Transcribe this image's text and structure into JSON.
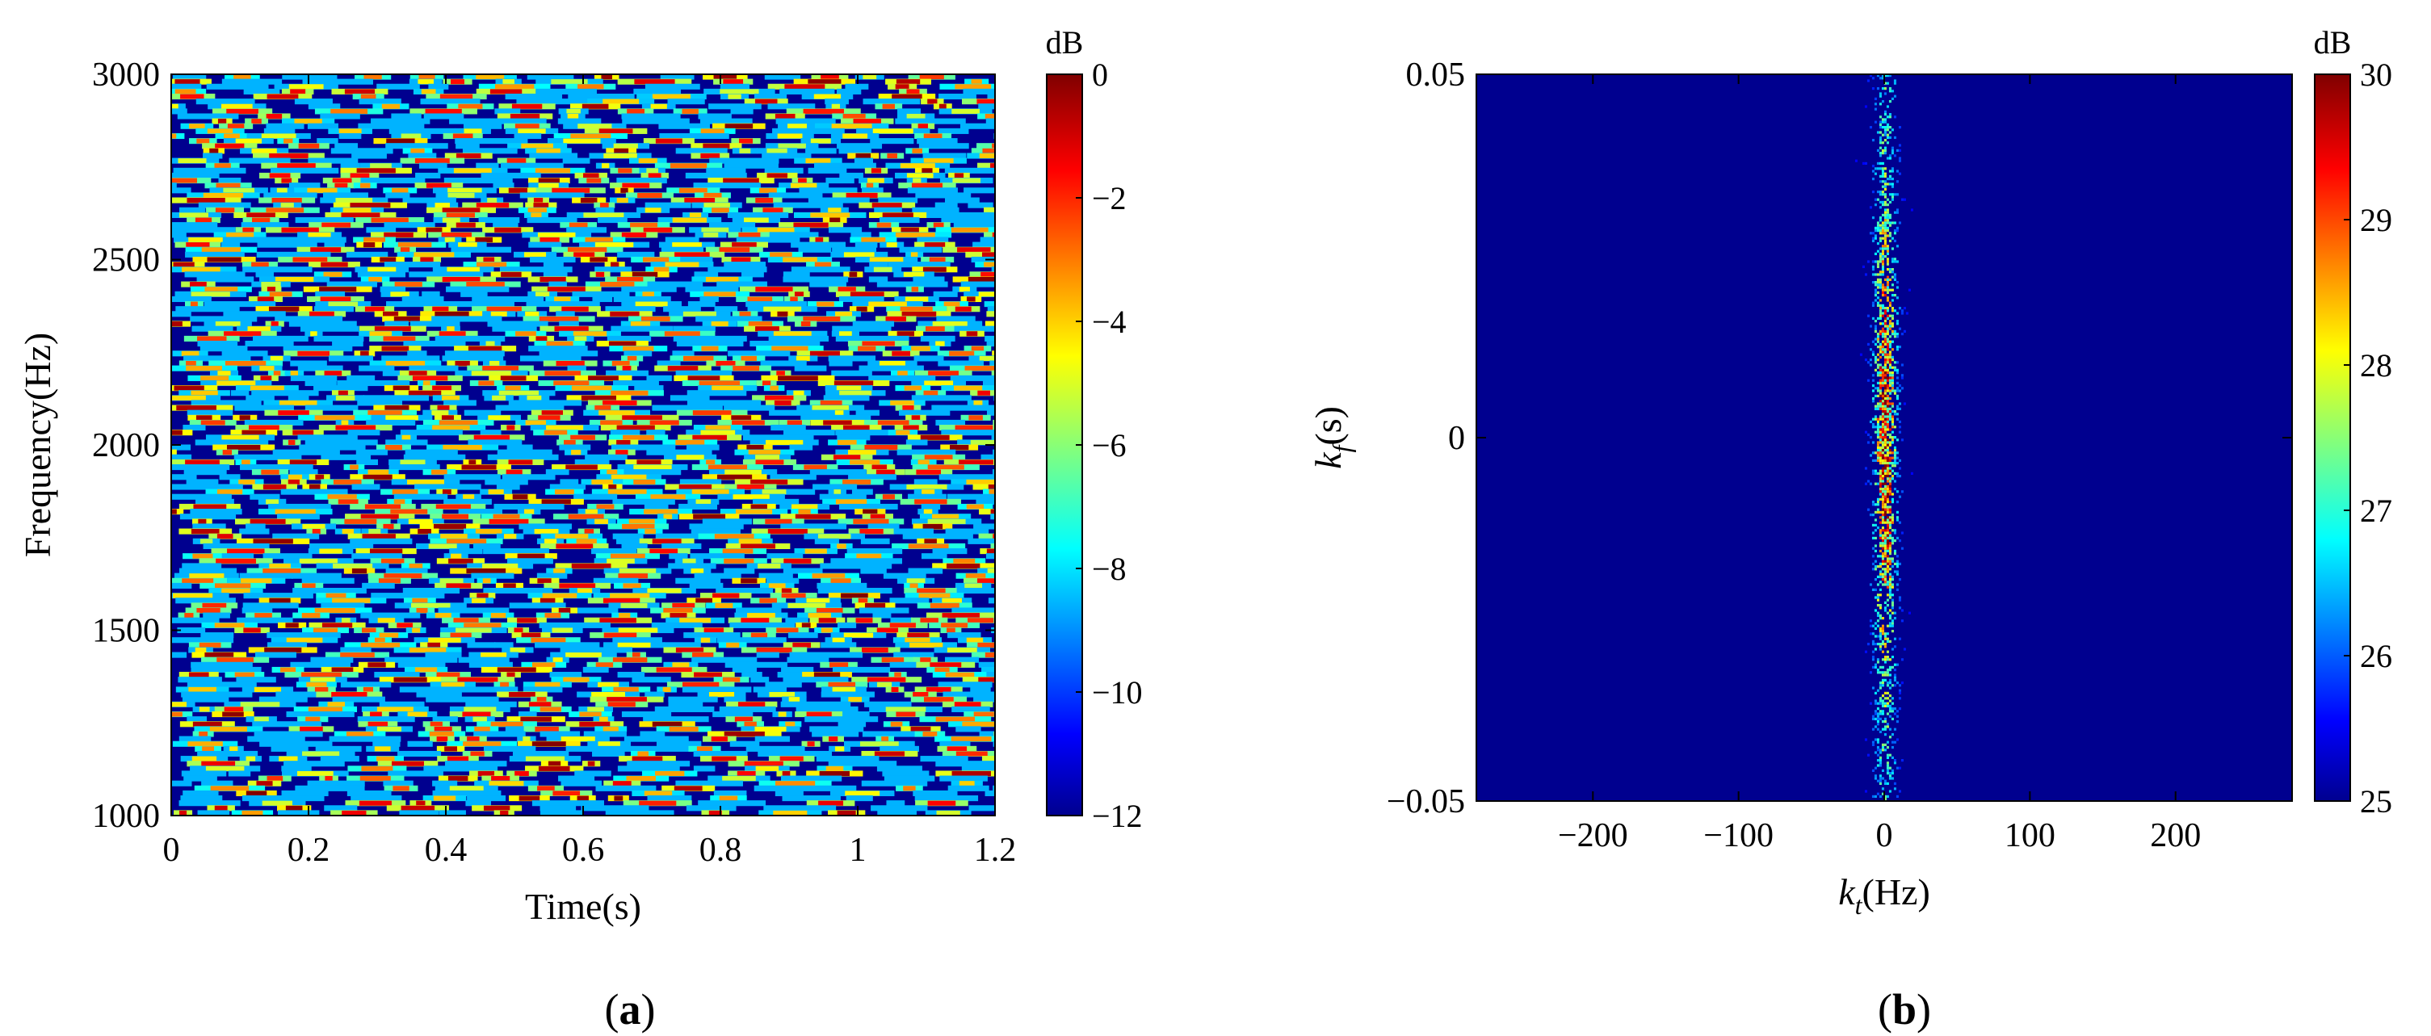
{
  "panels": {
    "a": {
      "label": "(a)"
    },
    "b": {
      "label": "(b)"
    }
  },
  "chart_data": [
    {
      "type": "heatmap",
      "panel": "(a)",
      "xlabel": "Time(s)",
      "ylabel": "Frequency(Hz)",
      "xlim": [
        0,
        1.2
      ],
      "ylim": [
        1000,
        3000
      ],
      "xticks": [
        0,
        0.2,
        0.4,
        0.6,
        0.8,
        1,
        1.2
      ],
      "xtick_labels": [
        "0",
        "0.2",
        "0.4",
        "0.6",
        "0.8",
        "1",
        "1.2"
      ],
      "yticks": [
        1000,
        1500,
        2000,
        2500,
        3000
      ],
      "ytick_labels": [
        "1000",
        "1500",
        "2000",
        "2500",
        "3000"
      ],
      "colorbar": {
        "unit": "dB",
        "range": [
          -12,
          0
        ],
        "ticks": [
          0,
          -2,
          -4,
          -6,
          -8,
          -10,
          -12
        ],
        "tick_labels": [
          "0",
          "−2",
          "−4",
          "−6",
          "−8",
          "−10",
          "−12"
        ]
      },
      "colormap": "jet",
      "background_color": "#00008f",
      "pattern": "short horizontal streaks of high energy (≈ −4 to 0 dB) scattered uniformly over the whole time-frequency plane on a −12 dB floor"
    },
    {
      "type": "heatmap",
      "panel": "(b)",
      "xlabel": "k_t(Hz)",
      "ylabel": "k_f(s)",
      "xlabel_parts": {
        "var": "k",
        "sub": "t",
        "unit": "(Hz)"
      },
      "ylabel_parts": {
        "var": "k",
        "sub": "f",
        "unit": "(s)"
      },
      "xlim": [
        -280,
        280
      ],
      "ylim": [
        -0.05,
        0.05
      ],
      "xticks": [
        -200,
        -100,
        0,
        100,
        200
      ],
      "xtick_labels": [
        "−200",
        "−100",
        "0",
        "100",
        "200"
      ],
      "yticks": [
        -0.05,
        0,
        0.05
      ],
      "ytick_labels": [
        "−0.05",
        "0",
        "0.05"
      ],
      "colorbar": {
        "unit": "dB",
        "range": [
          25,
          30
        ],
        "ticks": [
          30,
          29,
          28,
          27,
          26,
          25
        ],
        "tick_labels": [
          "30",
          "29",
          "28",
          "27",
          "26",
          "25"
        ]
      },
      "colormap": "jet",
      "background_color": "#00008f",
      "energy_band": {
        "kt_center": 0,
        "kt_halfwidth": 20,
        "peak_kf": 0,
        "peak_db": 30,
        "floor_db": 25
      },
      "pattern": "energy concentrated in a narrow vertical band around k_t = 0, strongest near k_f = 0"
    }
  ],
  "colors": {
    "jet_stops": [
      "#00008f",
      "#0000ff",
      "#00ffff",
      "#ffff00",
      "#ff0000",
      "#800000"
    ]
  }
}
